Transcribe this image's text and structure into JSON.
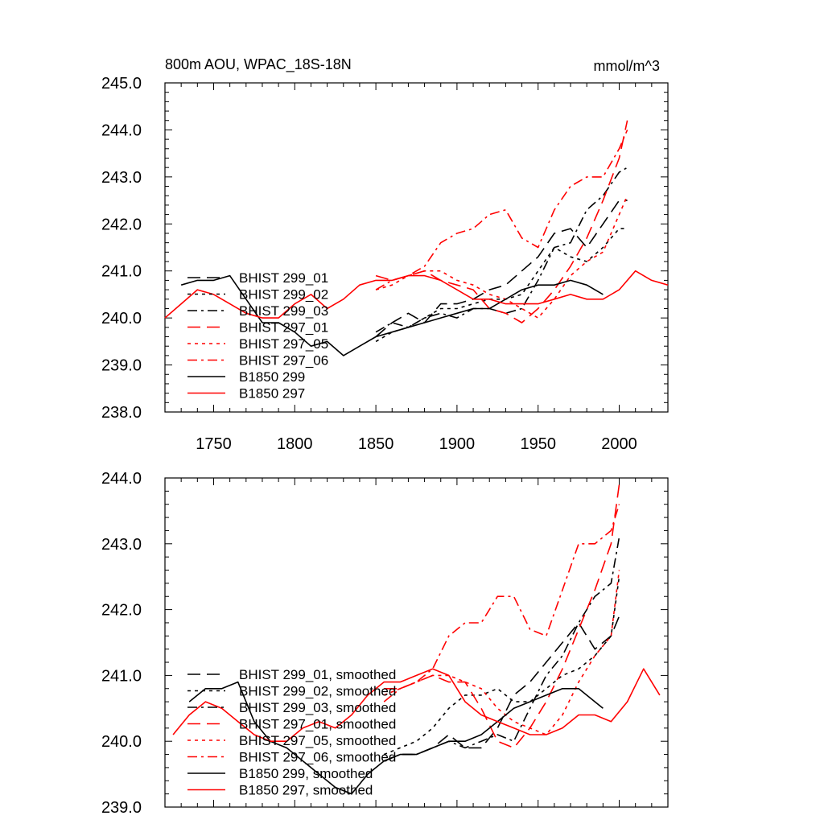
{
  "chart_data": [
    {
      "type": "line",
      "title_left": "800m AOU, WPAC_18S-18N",
      "title_right": "mmol/m^3",
      "xlabel": "",
      "ylabel": "",
      "xlim": [
        1720,
        2030
      ],
      "ylim": [
        238.0,
        245.0
      ],
      "xticks": [
        1750,
        1800,
        1850,
        1900,
        1950,
        2000
      ],
      "xtick_labels": [
        "1750",
        "1800",
        "1850",
        "1900",
        "1950",
        "2000"
      ],
      "yticks": [
        238,
        239,
        240,
        241,
        242,
        243,
        244,
        245
      ],
      "ytick_labels": [
        "238.0",
        "239.0",
        "240.0",
        "241.0",
        "242.0",
        "243.0",
        "244.0",
        "245.0"
      ],
      "legend_position": "left",
      "series": [
        {
          "name": "BHIST 299_01",
          "color": "#000000",
          "dash": "long-dash",
          "x": [
            1850,
            1860,
            1870,
            1880,
            1890,
            1900,
            1910,
            1920,
            1930,
            1940,
            1950,
            1960,
            1970,
            1980,
            1990,
            2000,
            2005
          ],
          "values": [
            239.6,
            239.9,
            240.1,
            239.9,
            240.3,
            240.3,
            240.4,
            240.6,
            240.7,
            241.0,
            241.3,
            241.8,
            241.9,
            241.5,
            242.0,
            242.5,
            242.5
          ]
        },
        {
          "name": "BHIST 299_02",
          "color": "#000000",
          "dash": "dot",
          "x": [
            1850,
            1860,
            1870,
            1880,
            1890,
            1900,
            1910,
            1920,
            1930,
            1940,
            1950,
            1960,
            1970,
            1980,
            1990,
            2000,
            2005
          ],
          "values": [
            239.5,
            239.7,
            239.8,
            240.0,
            240.2,
            240.2,
            240.3,
            240.4,
            240.4,
            240.5,
            241.0,
            241.5,
            241.3,
            241.2,
            241.5,
            241.9,
            241.9
          ]
        },
        {
          "name": "BHIST 299_03",
          "color": "#000000",
          "dash": "dash-dot",
          "x": [
            1850,
            1860,
            1870,
            1880,
            1890,
            1900,
            1910,
            1920,
            1930,
            1940,
            1950,
            1960,
            1970,
            1980,
            1990,
            2000,
            2005
          ],
          "values": [
            239.7,
            239.9,
            239.8,
            240.0,
            240.1,
            240.0,
            240.2,
            240.2,
            240.1,
            240.2,
            240.8,
            241.5,
            241.6,
            242.3,
            242.6,
            243.1,
            243.2
          ]
        },
        {
          "name": "BHIST 297_01",
          "color": "#ff0000",
          "dash": "long-dash",
          "x": [
            1850,
            1860,
            1870,
            1880,
            1890,
            1900,
            1910,
            1920,
            1930,
            1940,
            1950,
            1960,
            1970,
            1980,
            1990,
            2000,
            2005
          ],
          "values": [
            240.9,
            240.8,
            240.9,
            241.0,
            240.8,
            240.7,
            240.6,
            240.2,
            240.1,
            239.9,
            240.2,
            240.6,
            241.1,
            241.7,
            242.5,
            243.4,
            244.2
          ]
        },
        {
          "name": "BHIST 297_05",
          "color": "#ff0000",
          "dash": "dot",
          "x": [
            1850,
            1860,
            1870,
            1880,
            1890,
            1900,
            1910,
            1920,
            1930,
            1940,
            1950,
            1960,
            1970,
            1980,
            1990,
            2000,
            2005
          ],
          "values": [
            240.6,
            240.7,
            240.9,
            241.0,
            241.0,
            240.8,
            240.7,
            240.5,
            240.4,
            240.2,
            240.0,
            240.4,
            240.9,
            241.2,
            241.4,
            242.2,
            242.6
          ]
        },
        {
          "name": "BHIST 297_06",
          "color": "#ff0000",
          "dash": "dash-dot",
          "x": [
            1850,
            1860,
            1870,
            1880,
            1890,
            1900,
            1910,
            1920,
            1930,
            1940,
            1950,
            1960,
            1970,
            1980,
            1990,
            2000,
            2005
          ],
          "values": [
            240.6,
            240.8,
            240.9,
            241.1,
            241.6,
            241.8,
            241.9,
            242.2,
            242.3,
            241.7,
            241.5,
            242.3,
            242.8,
            243.0,
            243.0,
            243.6,
            244.0
          ]
        },
        {
          "name": "B1850 299",
          "color": "#000000",
          "dash": "solid",
          "x": [
            1720,
            1730,
            1740,
            1750,
            1760,
            1770,
            1780,
            1790,
            1800,
            1810,
            1820,
            1830,
            1840,
            1850,
            1860,
            1870,
            1880,
            1890,
            1900,
            1910,
            1920,
            1930,
            1940,
            1950,
            1960,
            1970,
            1980,
            1990
          ],
          "values": [
            null,
            240.7,
            240.8,
            240.8,
            240.9,
            240.4,
            239.9,
            239.9,
            239.7,
            239.4,
            239.5,
            239.2,
            239.4,
            239.6,
            239.7,
            239.8,
            239.9,
            240.0,
            240.1,
            240.2,
            240.2,
            240.4,
            240.6,
            240.7,
            240.7,
            240.8,
            240.7,
            240.5
          ]
        },
        {
          "name": "B1850 297",
          "color": "#ff0000",
          "dash": "solid",
          "x": [
            1720,
            1730,
            1740,
            1750,
            1760,
            1770,
            1780,
            1790,
            1800,
            1810,
            1820,
            1830,
            1840,
            1850,
            1860,
            1870,
            1880,
            1890,
            1900,
            1910,
            1920,
            1930,
            1940,
            1950,
            1960,
            1970,
            1980,
            1990,
            2000,
            2010,
            2020,
            2030
          ],
          "values": [
            240.0,
            240.3,
            240.6,
            240.5,
            240.3,
            240.1,
            240.0,
            240.0,
            240.3,
            240.5,
            240.2,
            240.4,
            240.7,
            240.8,
            240.8,
            240.9,
            240.9,
            240.8,
            240.6,
            240.4,
            240.4,
            240.3,
            240.3,
            240.3,
            240.4,
            240.5,
            240.4,
            240.4,
            240.6,
            241.0,
            240.8,
            240.7
          ]
        }
      ]
    },
    {
      "type": "line",
      "title": "",
      "xlabel": "",
      "ylabel": "",
      "xlim": [
        1720,
        2030
      ],
      "ylim": [
        239.0,
        244.0
      ],
      "yticks": [
        239,
        240,
        241,
        242,
        243,
        244
      ],
      "ytick_labels": [
        "239.0",
        "240.0",
        "241.0",
        "242.0",
        "243.0",
        "244.0"
      ],
      "legend_position": "left",
      "series": [
        {
          "name": "BHIST 299_01, smoothed",
          "color": "#000000",
          "dash": "long-dash",
          "x": [
            1855,
            1865,
            1875,
            1885,
            1895,
            1905,
            1915,
            1925,
            1935,
            1945,
            1955,
            1965,
            1975,
            1985,
            1995,
            2000
          ],
          "values": [
            239.7,
            239.8,
            239.8,
            239.9,
            240.1,
            239.9,
            239.9,
            240.2,
            240.7,
            240.9,
            241.2,
            241.5,
            241.8,
            241.4,
            241.6,
            241.9
          ]
        },
        {
          "name": "BHIST 299_02, smoothed",
          "color": "#000000",
          "dash": "dot",
          "x": [
            1855,
            1865,
            1875,
            1885,
            1895,
            1905,
            1915,
            1925,
            1935,
            1945,
            1955,
            1965,
            1975,
            1985,
            1995,
            2000
          ],
          "values": [
            239.8,
            239.9,
            240.0,
            240.2,
            240.5,
            240.7,
            240.7,
            240.8,
            240.6,
            240.6,
            240.8,
            241.0,
            241.1,
            241.3,
            241.6,
            242.5
          ]
        },
        {
          "name": "BHIST 299_03, smoothed",
          "color": "#000000",
          "dash": "dash-dot",
          "x": [
            1855,
            1865,
            1875,
            1885,
            1895,
            1905,
            1915,
            1925,
            1935,
            1945,
            1955,
            1965,
            1975,
            1985,
            1995,
            2000
          ],
          "values": [
            239.7,
            239.8,
            239.8,
            239.9,
            240.0,
            239.9,
            240.0,
            240.1,
            240.0,
            240.5,
            241.0,
            241.3,
            241.8,
            242.2,
            242.4,
            243.1
          ]
        },
        {
          "name": "BHIST 297_01, smoothed",
          "color": "#ff0000",
          "dash": "long-dash",
          "x": [
            1855,
            1865,
            1875,
            1885,
            1895,
            1905,
            1915,
            1925,
            1935,
            1945,
            1955,
            1965,
            1975,
            1985,
            1995,
            2000
          ],
          "values": [
            240.8,
            240.8,
            240.9,
            241.0,
            240.9,
            240.9,
            240.5,
            240.0,
            239.9,
            240.2,
            240.6,
            241.1,
            241.7,
            242.3,
            243.0,
            243.9
          ]
        },
        {
          "name": "BHIST 297_05, smoothed",
          "color": "#ff0000",
          "dash": "dot",
          "x": [
            1855,
            1865,
            1875,
            1885,
            1895,
            1905,
            1915,
            1925,
            1935,
            1945,
            1955,
            1965,
            1975,
            1985,
            1995,
            2000
          ],
          "values": [
            240.7,
            240.8,
            240.9,
            241.0,
            241.0,
            240.9,
            240.8,
            240.5,
            240.3,
            240.2,
            240.1,
            240.4,
            240.9,
            241.3,
            241.6,
            242.6
          ]
        },
        {
          "name": "BHIST 297_06, smoothed",
          "color": "#ff0000",
          "dash": "dash-dot",
          "x": [
            1855,
            1865,
            1875,
            1885,
            1895,
            1905,
            1915,
            1925,
            1935,
            1945,
            1955,
            1965,
            1975,
            1985,
            1995,
            2000
          ],
          "values": [
            240.6,
            240.8,
            240.9,
            241.1,
            241.6,
            241.8,
            241.8,
            242.2,
            242.2,
            241.7,
            241.6,
            242.3,
            243.0,
            243.0,
            243.2,
            243.6
          ]
        },
        {
          "name": "B1850 299, smoothed",
          "color": "#000000",
          "dash": "solid",
          "x": [
            1735,
            1745,
            1755,
            1765,
            1775,
            1785,
            1795,
            1805,
            1815,
            1825,
            1835,
            1845,
            1855,
            1865,
            1875,
            1885,
            1895,
            1905,
            1915,
            1925,
            1935,
            1945,
            1955,
            1965,
            1975,
            1985,
            1990
          ],
          "values": [
            240.6,
            240.8,
            240.8,
            240.9,
            240.3,
            240.0,
            239.9,
            239.7,
            239.5,
            239.3,
            239.2,
            239.5,
            239.7,
            239.8,
            239.8,
            239.9,
            240.0,
            240.0,
            240.1,
            240.3,
            240.5,
            240.6,
            240.7,
            240.8,
            240.8,
            240.6,
            240.5
          ]
        },
        {
          "name": "B1850 297, smoothed",
          "color": "#ff0000",
          "dash": "solid",
          "x": [
            1725,
            1735,
            1745,
            1755,
            1765,
            1775,
            1785,
            1795,
            1805,
            1815,
            1825,
            1835,
            1845,
            1855,
            1865,
            1875,
            1885,
            1895,
            1905,
            1915,
            1925,
            1935,
            1945,
            1955,
            1965,
            1975,
            1985,
            1995,
            2005,
            2015,
            2025
          ],
          "values": [
            240.1,
            240.4,
            240.6,
            240.5,
            240.3,
            240.1,
            240.0,
            240.0,
            240.2,
            240.3,
            240.2,
            240.4,
            240.7,
            240.9,
            240.9,
            241.0,
            241.1,
            241.0,
            240.6,
            240.4,
            240.3,
            240.2,
            240.1,
            240.1,
            240.2,
            240.4,
            240.4,
            240.3,
            240.6,
            241.1,
            240.7
          ]
        }
      ]
    }
  ]
}
